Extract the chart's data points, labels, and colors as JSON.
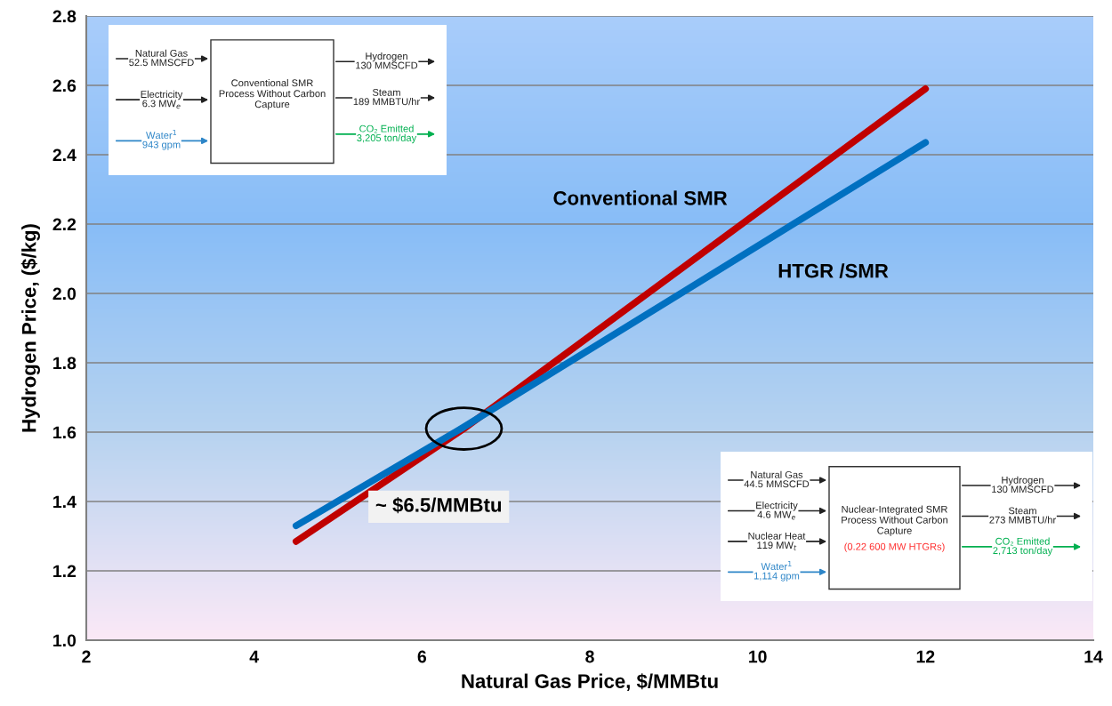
{
  "chart_data": {
    "type": "line",
    "xlabel": "Natural Gas Price, $/MMBtu",
    "ylabel": "Hydrogen Price, ($/kg)",
    "x": [
      4.5,
      6.5,
      12
    ],
    "series": [
      {
        "name": "Conventional SMR",
        "color": "#c00000",
        "values": [
          1.285,
          1.61,
          2.59
        ]
      },
      {
        "name": "HTGR /SMR",
        "color": "#0070c0",
        "values": [
          1.33,
          1.615,
          2.435
        ]
      }
    ],
    "xlim": [
      2,
      14
    ],
    "ylim": [
      1.0,
      2.8
    ],
    "xticks": [
      2,
      4,
      6,
      8,
      10,
      12,
      14
    ],
    "yticks": [
      {
        "value": 1,
        "label": "1.0"
      },
      1.2,
      1.4,
      1.6,
      1.8,
      {
        "value": 2,
        "label": "2.0"
      },
      2.2,
      2.4,
      2.6,
      2.8
    ],
    "grid": "y",
    "legend": false,
    "marker": "none",
    "line_style": "solid",
    "annotations": [
      "~ $6.5/MMBtu",
      "Natural Gas\n52.5 MMSCFD",
      "Electricity\n6.3 MW$_{e}$",
      "Water$^{1}$\n943 gpm",
      "Conventional SMR\nProcess Without Carbon\nCapture",
      "Hydrogen\n130 MMSCFD",
      "Steam\n189 MMBTU/hr",
      "CO₂ Emitted\n3,205 ton/day",
      "Natural Gas\n44.5 MMSCFD",
      "Electricity\n4.6 MW$_{e}$",
      "Nuclear Heat\n119 MW$_{t}$",
      "Water$^{1}$\n1,114 gpm",
      "Nuclear-Integrated SMR\nProcess Without Carbon\nCapture",
      "(0.22 600 MW HTGRs)",
      "Hydrogen\n130 MMSCFD",
      "Steam\n273 MMBTU/hr",
      "CO₂ Emitted\n2,713 ton/day"
    ]
  }
}
